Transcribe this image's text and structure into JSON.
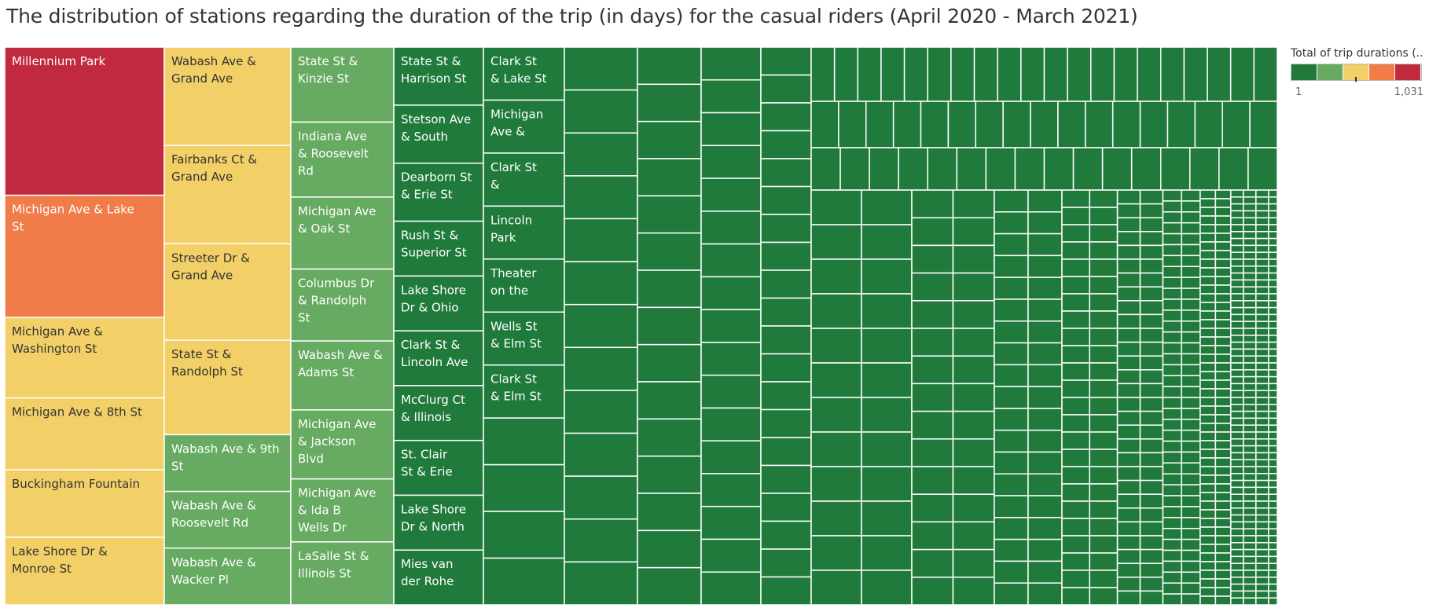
{
  "chart_data": {
    "type": "treemap",
    "title": "The distribution of stations regarding the duration of the trip (in days) for the casual riders (April 2020 - March 2021)",
    "color_legend": {
      "title": "Total of trip durations (..",
      "min_label": "1",
      "max_label": "1,031",
      "min": 1,
      "max": 1031,
      "marker_value": 515,
      "colors": [
        "#207a3c",
        "#66ab61",
        "#f2d067",
        "#f07c4a",
        "#c12a3e"
      ]
    },
    "labeled_cells": [
      {
        "name": "Millennium Park",
        "value": 1031
      },
      {
        "name": "Michigan Ave & Lake St",
        "value": 850
      },
      {
        "name": "Michigan Ave & Washington St",
        "value": 560
      },
      {
        "name": "Michigan Ave & 8th St",
        "value": 500
      },
      {
        "name": "Buckingham Fountain",
        "value": 470
      },
      {
        "name": "Lake Shore Dr & Monroe St",
        "value": 470
      },
      {
        "name": "Wabash Ave & Grand Ave",
        "value": 520
      },
      {
        "name": "Fairbanks Ct & Grand Ave",
        "value": 520
      },
      {
        "name": "Streeter Dr & Grand Ave",
        "value": 510
      },
      {
        "name": "State St & Randolph St",
        "value": 500
      },
      {
        "name": "Wabash Ave & 9th St",
        "value": 300
      },
      {
        "name": "Wabash Ave & Roosevelt Rd",
        "value": 300
      },
      {
        "name": "Wabash Ave & Wacker Pl",
        "value": 300
      },
      {
        "name": "State St & Kinzie St",
        "value": 250
      },
      {
        "name": "Indiana Ave & Roosevelt Rd",
        "value": 250
      },
      {
        "name": "Michigan Ave & Oak St",
        "value": 240
      },
      {
        "name": "Columbus Dr & Randolph St",
        "value": 240
      },
      {
        "name": "Wabash Ave & Adams St",
        "value": 230
      },
      {
        "name": "Michigan Ave & Jackson Blvd",
        "value": 230
      },
      {
        "name": "Michigan Ave & Ida B Wells Dr",
        "value": 210
      },
      {
        "name": "LaSalle St & Illinois St",
        "value": 210
      },
      {
        "name": "State St & Harrison St",
        "value": 180
      },
      {
        "name": "Stetson Ave & South",
        "value": 180
      },
      {
        "name": "Dearborn St & Erie St",
        "value": 180
      },
      {
        "name": "Rush St & Superior St",
        "value": 170
      },
      {
        "name": "Lake Shore Dr & Ohio St",
        "value": 170
      },
      {
        "name": "Clark St & Lincoln Ave",
        "value": 170
      },
      {
        "name": "McClurg Ct & Illinois St",
        "value": 170
      },
      {
        "name": "St. Clair St & Erie St",
        "value": 170
      },
      {
        "name": "Lake Shore Dr & North",
        "value": 170
      },
      {
        "name": "Mies van der Rohe Way &",
        "value": 170
      },
      {
        "name": "Clark St & Lake St",
        "value": 150
      },
      {
        "name": "Michigan Ave &",
        "value": 150
      },
      {
        "name": "Clark St & Randolph",
        "value": 150
      },
      {
        "name": "Lincoln Park",
        "value": 150
      },
      {
        "name": "Theater on the Lake",
        "value": 150
      },
      {
        "name": "Wells St & Elm St",
        "value": 150
      },
      {
        "name": "Clark St & Elm St",
        "value": 150
      }
    ]
  }
}
